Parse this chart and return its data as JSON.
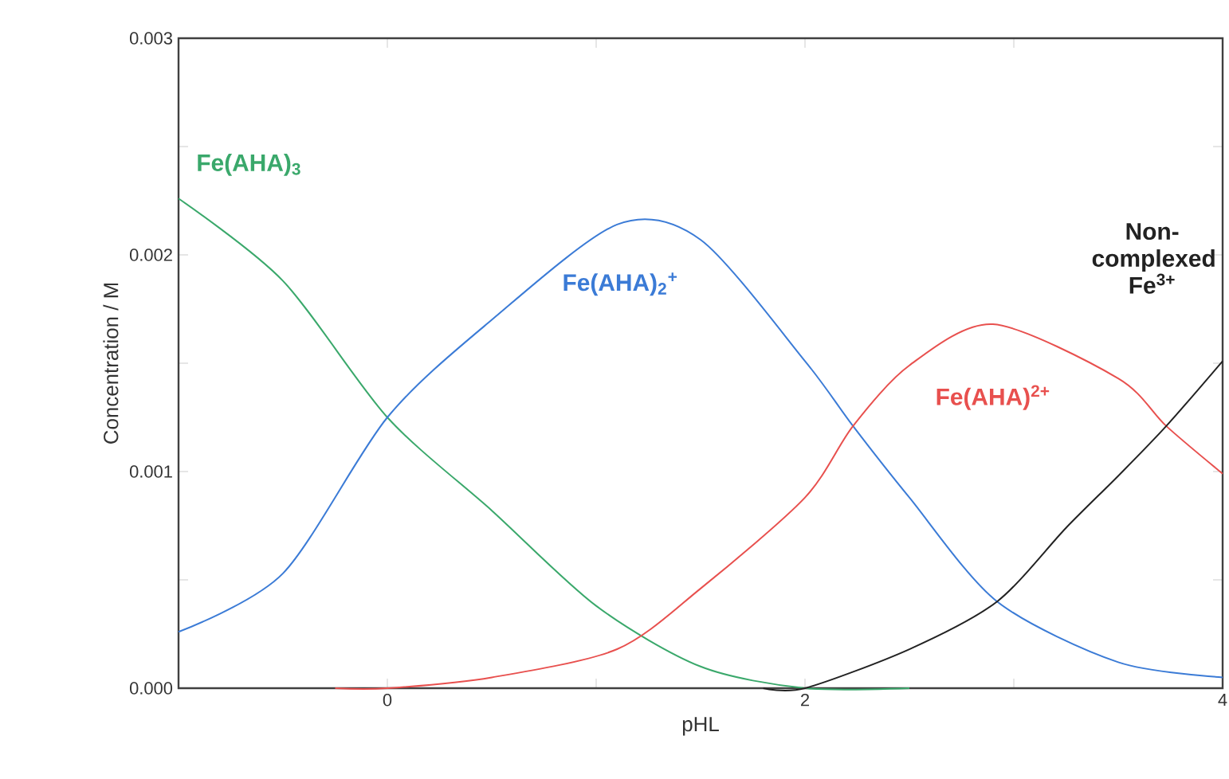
{
  "chart_data": {
    "type": "line",
    "xlabel": "pHL",
    "ylabel": "Concentration / M",
    "xlim": [
      -1,
      4
    ],
    "ylim": [
      0,
      0.003
    ],
    "xticks": [
      0,
      {
        "value": 1,
        "label": null
      },
      2,
      {
        "value": 3,
        "label": null
      },
      4
    ],
    "yticks": [
      {
        "value": 0,
        "label": "0.000"
      },
      {
        "value": 0.0005,
        "label": null
      },
      {
        "value": 0.001,
        "label": "0.001"
      },
      {
        "value": 0.0015,
        "label": null
      },
      {
        "value": 0.002,
        "label": "0.002"
      },
      {
        "value": 0.0025,
        "label": null
      },
      {
        "value": 0.003,
        "label": "0.003"
      }
    ],
    "marker": "none",
    "series": [
      {
        "name": "Fe(AHA)$_{3}$",
        "color": "#3aa86b",
        "x": [
          -1,
          -0.5,
          0,
          0.5,
          1,
          1.5,
          2,
          2.5
        ],
        "values": [
          0.00226,
          0.00188,
          0.00125,
          0.00082,
          0.00038,
          0.0001,
          0,
          0
        ]
      },
      {
        "name": "Fe(AHA)$_{2}$$^{+}$",
        "color": "#3b7bd6",
        "x": [
          -1,
          -0.5,
          0,
          0.5,
          1.1,
          1.5,
          2,
          2.23,
          2.5,
          2.92,
          3.5,
          4
        ],
        "values": [
          0.00026,
          0.00053,
          0.00125,
          0.0017,
          0.00214,
          0.00207,
          0.00151,
          0.00121,
          0.00088,
          0.0004,
          0.00012,
          5e-05
        ]
      },
      {
        "name": "Fe(AHA)$^{2+}$",
        "color": "#e8504e",
        "x": [
          -0.25,
          0,
          0.5,
          1.1,
          1.5,
          2,
          2.23,
          2.5,
          2.9,
          3.5,
          3.73,
          4
        ],
        "values": [
          0,
          0,
          5e-05,
          0.00018,
          0.00046,
          0.00088,
          0.00121,
          0.00149,
          0.00168,
          0.00143,
          0.00121,
          0.00099
        ]
      },
      {
        "name": "Non-complexed Fe$^{3+}$",
        "color": "#222222",
        "x": [
          1.8,
          2,
          2.5,
          2.92,
          3.25,
          3.5,
          3.73,
          4
        ],
        "values": [
          0,
          0,
          0.00018,
          0.0004,
          0.00074,
          0.00098,
          0.00121,
          0.00151
        ]
      }
    ]
  }
}
